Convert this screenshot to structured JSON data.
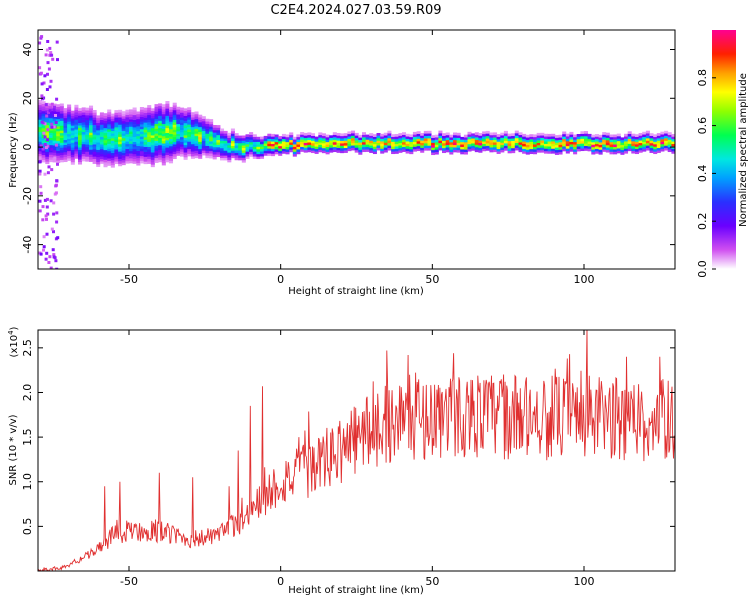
{
  "title": "C2E4.2024.027.03.59.R09",
  "colors": {
    "snr_line": "#e03030",
    "axis": "#000000",
    "background": "#ffffff"
  },
  "chart_data": [
    {
      "type": "heatmap",
      "name": "spectrogram",
      "xlabel": "Height of straight line (km)",
      "ylabel": "Frequency (Hz)",
      "xlim": [
        -80,
        130
      ],
      "ylim": [
        -50,
        48
      ],
      "xticks": [
        -50,
        0,
        50,
        100
      ],
      "yticks": [
        -40,
        -20,
        0,
        20,
        40
      ],
      "colorbar": {
        "label": "Normalized spectral amplitude",
        "range": [
          0.0,
          1.0
        ],
        "ticks": [
          "0.0",
          "0.2",
          "0.4",
          "0.6",
          "0.8"
        ],
        "tick_values": [
          0.0,
          0.2,
          0.4,
          0.6,
          0.8
        ]
      },
      "ridge": {
        "x": [
          -78,
          -70,
          -60,
          -50,
          -40,
          -32,
          -25,
          -18,
          -10,
          0,
          10,
          30,
          50,
          70,
          90,
          110,
          130
        ],
        "frequency": [
          6,
          5,
          3,
          3,
          5,
          6,
          3,
          0,
          0,
          0,
          1,
          1,
          1,
          1,
          1,
          1,
          1
        ]
      },
      "ridge_width_hz": {
        "x": [
          -78,
          -55,
          -40,
          -30,
          -20,
          0,
          130
        ],
        "width": [
          10,
          9,
          10,
          8,
          5,
          3,
          3
        ]
      }
    },
    {
      "type": "line",
      "name": "snr",
      "xlabel": "Height of straight line (km)",
      "ylabel": "SNR (10 * v/v)",
      "y_multiplier": "(x10",
      "y_multiplier_exp": "4",
      "xlim": [
        -80,
        130
      ],
      "ylim": [
        0,
        2.7
      ],
      "xticks": [
        -50,
        0,
        50,
        100
      ],
      "yticks": [
        0.5,
        1.0,
        1.5,
        2.0,
        2.5
      ],
      "ytick_labels": [
        "0.5",
        "1.0",
        "1.5",
        "2.0",
        "2.5"
      ],
      "trend": {
        "x": [
          -80,
          -70,
          -60,
          -55,
          -50,
          -40,
          -30,
          -20,
          -10,
          -5,
          0,
          10,
          20,
          30,
          40,
          50,
          60,
          80,
          100,
          130
        ],
        "y": [
          0.0,
          0.05,
          0.25,
          0.4,
          0.45,
          0.45,
          0.35,
          0.4,
          0.65,
          0.85,
          1.0,
          1.15,
          1.35,
          1.6,
          1.72,
          1.72,
          1.75,
          1.72,
          1.72,
          1.68
        ]
      },
      "spikes": [
        {
          "x": -58,
          "y": 0.95
        },
        {
          "x": -53,
          "y": 1.0
        },
        {
          "x": -40,
          "y": 1.1
        },
        {
          "x": -29,
          "y": 1.05
        },
        {
          "x": -17,
          "y": 0.95
        },
        {
          "x": -14,
          "y": 1.35
        },
        {
          "x": -10,
          "y": 1.85
        },
        {
          "x": -6,
          "y": 2.07
        },
        {
          "x": 6,
          "y": 1.5
        },
        {
          "x": 35,
          "y": 2.47
        },
        {
          "x": 42,
          "y": 2.42
        },
        {
          "x": 57,
          "y": 2.44
        },
        {
          "x": 101,
          "y": 2.72
        },
        {
          "x": 114,
          "y": 2.4
        },
        {
          "x": 125,
          "y": 2.4
        }
      ]
    }
  ]
}
